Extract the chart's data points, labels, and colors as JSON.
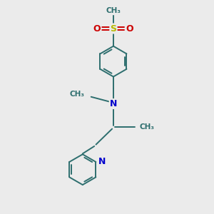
{
  "background_color": "#ebebeb",
  "bond_color": "#2d6e6e",
  "nitrogen_color": "#0000cc",
  "sulfur_color": "#b8b800",
  "oxygen_color": "#cc0000",
  "line_width": 1.4,
  "figsize": [
    3.0,
    3.0
  ],
  "dpi": 100,
  "xlim": [
    0,
    10
  ],
  "ylim": [
    0,
    10
  ]
}
